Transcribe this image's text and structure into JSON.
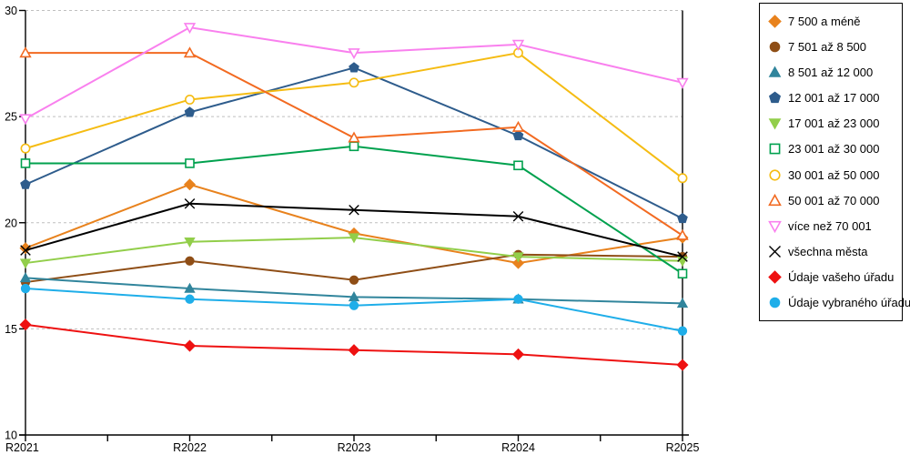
{
  "chart_data": {
    "type": "line",
    "title": "",
    "xlabel": "",
    "ylabel": "",
    "categories": [
      "R2021",
      "R2022",
      "R2023",
      "R2024",
      "R2025"
    ],
    "ylim": [
      10,
      30
    ],
    "yticks": [
      10,
      15,
      20,
      25,
      30
    ],
    "grid": "horizontal dashed gridlines at 15,20,25,30",
    "legend_position": "right, boxed",
    "series": [
      {
        "name": "7 500 a méně",
        "color": "#E8821D",
        "marker": "diamond",
        "fill": "solid",
        "values": [
          18.8,
          21.8,
          19.5,
          18.1,
          19.3
        ]
      },
      {
        "name": "7 501 až 8 500",
        "color": "#8F4E16",
        "marker": "circle",
        "fill": "solid",
        "values": [
          17.2,
          18.2,
          17.3,
          18.5,
          18.4
        ]
      },
      {
        "name": "8 501 až 12 000",
        "color": "#31859C",
        "marker": "triangle-up",
        "fill": "solid",
        "values": [
          17.4,
          16.9,
          16.5,
          16.4,
          16.2
        ]
      },
      {
        "name": "12 001 až 17 000",
        "color": "#2E5C8C",
        "marker": "pentagon",
        "fill": "solid",
        "values": [
          21.8,
          25.2,
          27.3,
          24.1,
          20.2
        ]
      },
      {
        "name": "17 001 až 23 000",
        "color": "#92CE4A",
        "marker": "triangle-down",
        "fill": "solid",
        "values": [
          18.1,
          19.1,
          19.3,
          18.4,
          18.2
        ]
      },
      {
        "name": "23 001 až 30 000",
        "color": "#00A14E",
        "marker": "square",
        "fill": "open",
        "values": [
          22.8,
          22.8,
          23.6,
          22.7,
          17.6
        ]
      },
      {
        "name": "30 001 až 50 000",
        "color": "#F5BC13",
        "marker": "circle",
        "fill": "open",
        "values": [
          23.5,
          25.8,
          26.6,
          28.0,
          22.1
        ]
      },
      {
        "name": "50 001 až 70 000",
        "color": "#F26A21",
        "marker": "triangle-up",
        "fill": "open",
        "values": [
          28.0,
          28.0,
          24.0,
          24.5,
          19.4
        ]
      },
      {
        "name": "více než 70 001",
        "color": "#F980EE",
        "marker": "triangle-down",
        "fill": "open",
        "values": [
          24.9,
          29.2,
          28.0,
          28.4,
          26.6
        ]
      },
      {
        "name": "všechna města",
        "color": "#000000",
        "marker": "x",
        "fill": "open",
        "values": [
          18.7,
          20.9,
          20.6,
          20.3,
          18.4
        ]
      },
      {
        "name": "Údaje vašeho úřadu",
        "color": "#EE1111",
        "marker": "diamond",
        "fill": "solid",
        "values": [
          15.2,
          14.2,
          14.0,
          13.8,
          13.3
        ]
      },
      {
        "name": "Údaje vybraného úřadu",
        "color": "#1FAEE9",
        "marker": "circle",
        "fill": "solid",
        "values": [
          16.9,
          16.4,
          16.1,
          16.4,
          14.9
        ]
      }
    ]
  }
}
